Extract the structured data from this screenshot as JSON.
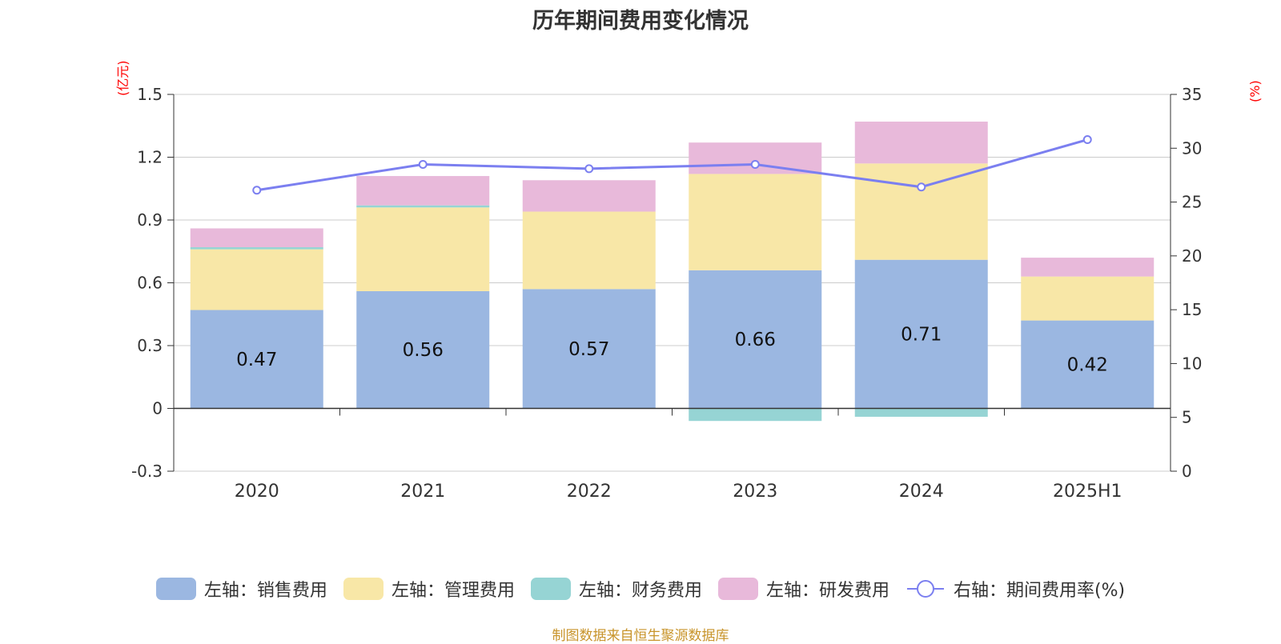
{
  "title": "历年期间费用变化情况",
  "left_unit": "(亿元)",
  "right_unit": "(%)",
  "source": "制图数据来自恒生聚源数据库",
  "colors": {
    "sales": "#9bb7e1",
    "admin": "#f8e7a7",
    "finance": "#96d4d4",
    "rnd": "#e8b9da",
    "rate": "#7b7ff0"
  },
  "legend": [
    {
      "key": "sales",
      "label": "左轴：销售费用",
      "type": "bar"
    },
    {
      "key": "admin",
      "label": "左轴：管理费用",
      "type": "bar"
    },
    {
      "key": "finance",
      "label": "左轴：财务费用",
      "type": "bar"
    },
    {
      "key": "rnd",
      "label": "左轴：研发费用",
      "type": "bar"
    },
    {
      "key": "rate",
      "label": "右轴：期间费用率(%)",
      "type": "line"
    }
  ],
  "chart_data": {
    "type": "bar",
    "stacked": true,
    "categories": [
      "2020",
      "2021",
      "2022",
      "2023",
      "2024",
      "2025H1"
    ],
    "series": [
      {
        "key": "sales",
        "name": "左轴：销售费用",
        "axis": "left",
        "values": [
          0.47,
          0.56,
          0.57,
          0.66,
          0.71,
          0.42
        ],
        "show_labels": true
      },
      {
        "key": "admin",
        "name": "左轴：管理费用",
        "axis": "left",
        "values": [
          0.29,
          0.4,
          0.37,
          0.46,
          0.46,
          0.21
        ]
      },
      {
        "key": "finance",
        "name": "左轴：财务费用",
        "axis": "left",
        "values": [
          0.01,
          0.01,
          0.0,
          -0.06,
          -0.04,
          0.0
        ]
      },
      {
        "key": "rnd",
        "name": "左轴：研发费用",
        "axis": "left",
        "values": [
          0.09,
          0.14,
          0.15,
          0.15,
          0.2,
          0.09
        ]
      },
      {
        "key": "rate",
        "name": "右轴：期间费用率(%)",
        "axis": "right",
        "type": "line",
        "values": [
          26.1,
          28.5,
          28.1,
          28.5,
          26.4,
          30.8
        ]
      }
    ],
    "y_left": {
      "min": -0.3,
      "max": 1.5,
      "ticks": [
        "-0.3",
        "0",
        "0.3",
        "0.6",
        "0.9",
        "1.2",
        "1.5"
      ]
    },
    "y_right": {
      "min": 0,
      "max": 35,
      "ticks": [
        "0",
        "5",
        "10",
        "15",
        "20",
        "25",
        "30",
        "35"
      ]
    },
    "grid": true,
    "legend_position": "bottom"
  }
}
